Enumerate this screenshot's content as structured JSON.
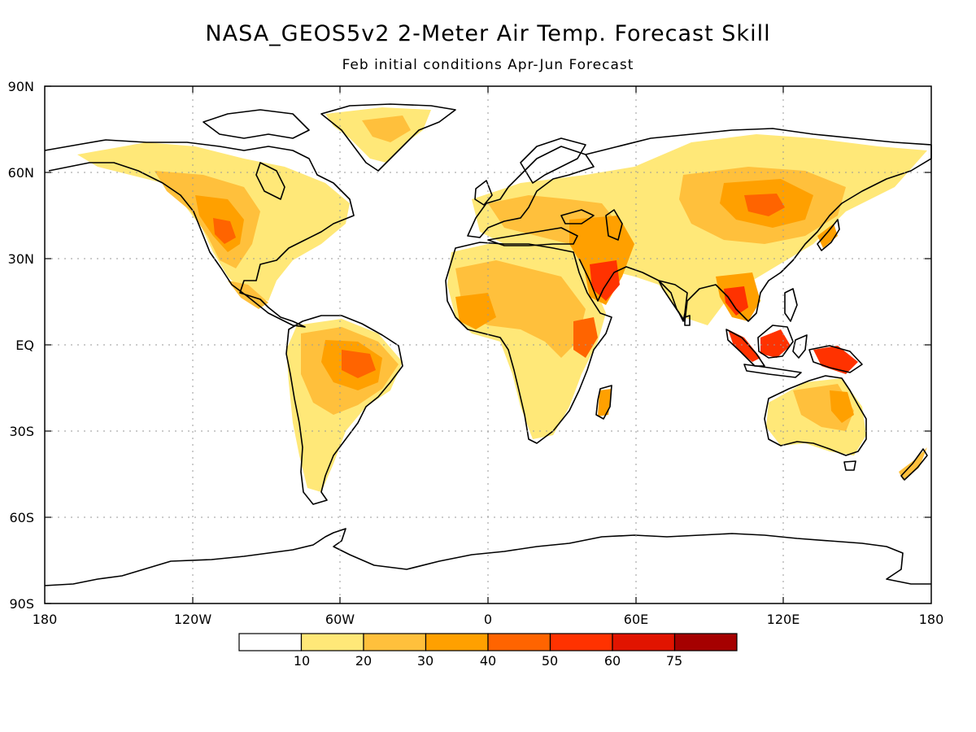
{
  "title": "NASA_GEOS5v2 2-Meter Air Temp. Forecast Skill",
  "subtitle": "Feb initial conditions  Apr-Jun Forecast",
  "lat_labels": [
    "90N",
    "60N",
    "30N",
    "EQ",
    "30S",
    "60S",
    "90S"
  ],
  "lon_labels": [
    "180",
    "120W",
    "60W",
    "0",
    "60E",
    "120E",
    "180"
  ],
  "colorbar": {
    "labels": [
      "10",
      "20",
      "30",
      "40",
      "50",
      "60",
      "75"
    ],
    "colors": [
      "#ffffff",
      "#ffe878",
      "#ffc03c",
      "#ffa000",
      "#ff6400",
      "#ff3200",
      "#e11400",
      "#a50000"
    ]
  },
  "colors": {
    "coast": "#000000",
    "grid": "#9a9a9a"
  }
}
